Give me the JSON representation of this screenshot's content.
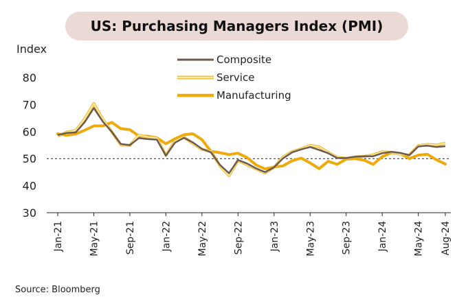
{
  "title": "US: Purchasing Managers Index (PMI)",
  "source": "Source: Bloomberg",
  "chart_data": {
    "type": "line",
    "ylabel": "Index",
    "ylim": [
      30,
      80
    ],
    "yticks": [
      30,
      40,
      50,
      60,
      70,
      80
    ],
    "reference_line": 50,
    "x": [
      "Jan-21",
      "Feb-21",
      "Mar-21",
      "Apr-21",
      "May-21",
      "Jun-21",
      "Jul-21",
      "Aug-21",
      "Sep-21",
      "Oct-21",
      "Nov-21",
      "Dec-21",
      "Jan-22",
      "Feb-22",
      "Mar-22",
      "Apr-22",
      "May-22",
      "Jun-22",
      "Jul-22",
      "Aug-22",
      "Sep-22",
      "Oct-22",
      "Nov-22",
      "Dec-22",
      "Jan-23",
      "Feb-23",
      "Mar-23",
      "Apr-23",
      "May-23",
      "Jun-23",
      "Jul-23",
      "Aug-23",
      "Sep-23",
      "Oct-23",
      "Nov-23",
      "Dec-23",
      "Jan-24",
      "Feb-24",
      "Mar-24",
      "Apr-24",
      "May-24",
      "Jun-24",
      "Jul-24",
      "Aug-24"
    ],
    "xtick_labels": [
      "Jan-21",
      "May-21",
      "Sep-21",
      "Jan-22",
      "May-22",
      "Sep-22",
      "Jan-23",
      "May-23",
      "Sep-23",
      "Jan-24",
      "May-24",
      "Aug-24"
    ],
    "legend_position": "top-center",
    "series": [
      {
        "name": "Composite",
        "color": "#6b5a50",
        "values": [
          58.7,
          59.5,
          59.7,
          63.5,
          68.7,
          63.7,
          59.9,
          55.4,
          55.0,
          57.6,
          57.2,
          57.0,
          51.1,
          55.9,
          57.7,
          56.0,
          53.6,
          52.3,
          47.7,
          44.6,
          49.5,
          48.2,
          46.4,
          45.0,
          46.8,
          50.1,
          52.3,
          53.4,
          54.3,
          53.2,
          52.0,
          50.2,
          50.2,
          50.7,
          50.9,
          50.9,
          52.0,
          52.5,
          52.1,
          51.3,
          54.5,
          54.8,
          54.3,
          54.6
        ]
      },
      {
        "name": "Service",
        "color": "#fde9a0",
        "values": [
          58.3,
          59.8,
          60.4,
          64.7,
          70.4,
          64.6,
          59.9,
          55.1,
          54.9,
          58.7,
          58.0,
          57.6,
          51.2,
          56.5,
          58.0,
          55.6,
          53.4,
          52.7,
          47.3,
          43.7,
          49.3,
          47.8,
          46.2,
          44.7,
          46.8,
          50.6,
          52.6,
          53.6,
          54.9,
          54.4,
          52.3,
          50.5,
          50.1,
          50.6,
          50.8,
          51.4,
          52.5,
          52.3,
          51.7,
          51.3,
          54.8,
          55.3,
          55.0,
          55.7
        ]
      },
      {
        "name": "Manufacturing",
        "color": "#eeaa0b",
        "values": [
          59.2,
          58.6,
          59.1,
          60.5,
          62.1,
          62.1,
          63.4,
          61.1,
          60.7,
          58.4,
          58.3,
          57.7,
          55.5,
          57.3,
          58.8,
          59.2,
          57.0,
          52.7,
          52.2,
          51.5,
          52.0,
          50.4,
          47.7,
          46.2,
          46.9,
          47.3,
          49.2,
          50.2,
          48.4,
          46.3,
          49.0,
          47.9,
          49.8,
          50.0,
          49.4,
          47.9,
          50.7,
          52.2,
          51.9,
          50.0,
          51.3,
          51.6,
          49.6,
          48.0
        ]
      }
    ]
  }
}
